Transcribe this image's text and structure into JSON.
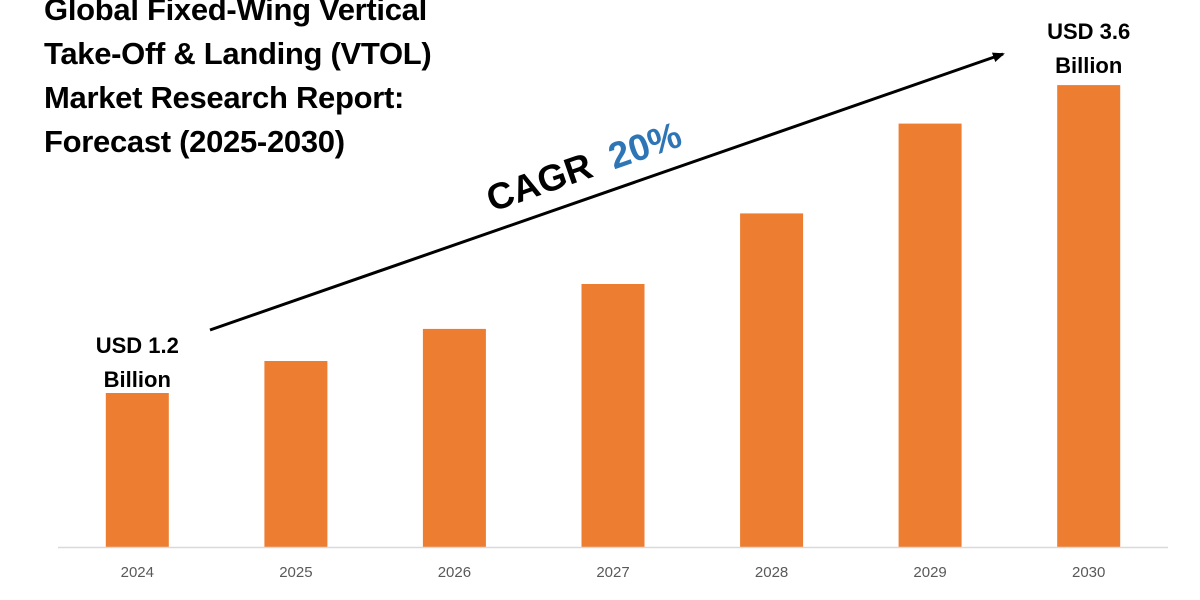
{
  "title": {
    "lines": [
      "Global Fixed-Wing Vertical",
      "Take-Off & Landing (VTOL)",
      "Market Research Report:",
      "Forecast (2025-2030)"
    ]
  },
  "colors": {
    "bar": "#ED7D31",
    "axis": "#D9D9D9",
    "text": "#000000",
    "tick_text": "#595959",
    "cagr_accent": "#2E75B6",
    "arrow": "#000000"
  },
  "annotations": {
    "start_callout": [
      "USD 1.2",
      "Billion"
    ],
    "end_callout": [
      "USD 3.6",
      "Billion"
    ],
    "cagr_label": "CAGR",
    "cagr_value": "20%"
  },
  "chart_data": {
    "type": "bar",
    "title": "Global Fixed-Wing Vertical Take-Off & Landing (VTOL) Market Research Report: Forecast (2025-2030)",
    "categories": [
      "2024",
      "2025",
      "2026",
      "2027",
      "2028",
      "2029",
      "2030"
    ],
    "series": [
      {
        "values": [
          1.2,
          1.45,
          1.7,
          2.05,
          2.6,
          3.3,
          3.6
        ]
      }
    ],
    "ylim": [
      0,
      4.1
    ],
    "grid": false,
    "xlabel": "",
    "ylabel": "",
    "trend": "arrow from 2024 to 2030"
  }
}
